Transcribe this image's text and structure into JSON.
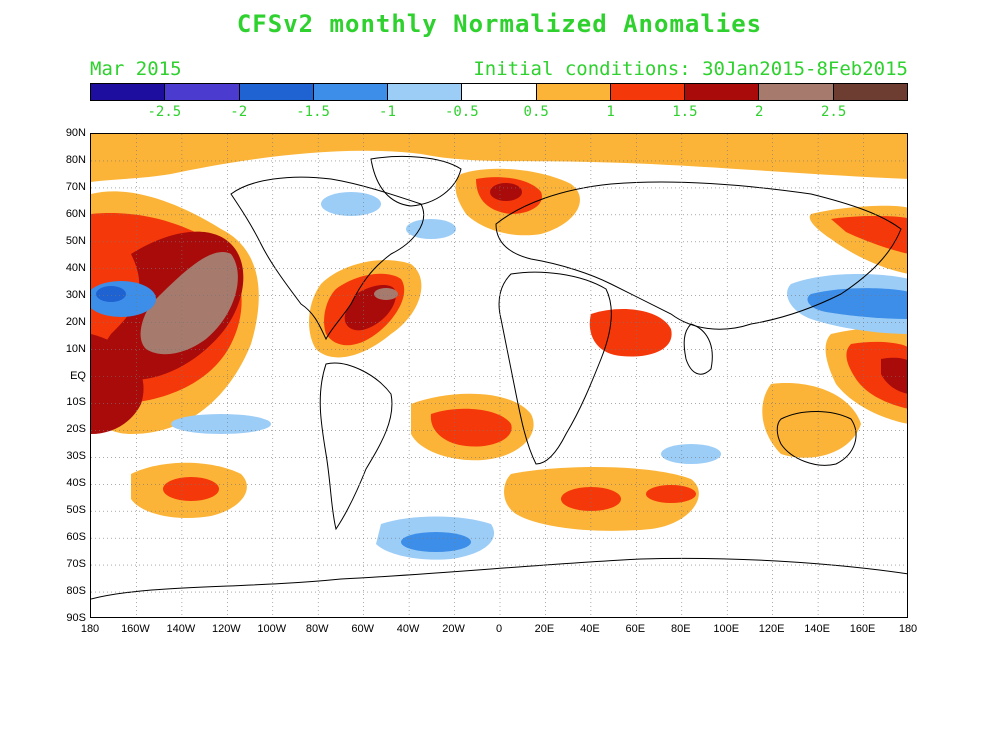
{
  "title": "CFSv2 monthly Normalized Anomalies",
  "month": "Mar 2015",
  "initial_conditions": "Initial conditions: 30Jan2015-8Feb2015",
  "colorbar": {
    "colors": [
      "#1e0ea0",
      "#4b3ccf",
      "#1f62d1",
      "#3d8ee8",
      "#9ccdf7",
      "#ffffff",
      "#fbb437",
      "#f5380a",
      "#a90a0a",
      "#a67a6c",
      "#6d3d32"
    ],
    "labels": [
      "-2.5",
      "-2",
      "-1.5",
      "-1",
      "-0.5",
      "0.5",
      "1",
      "1.5",
      "2",
      "2.5"
    ]
  },
  "lat_labels": [
    "90N",
    "80N",
    "70N",
    "60N",
    "50N",
    "40N",
    "30N",
    "20N",
    "10N",
    "EQ",
    "10S",
    "20S",
    "30S",
    "40S",
    "50S",
    "60S",
    "70S",
    "80S",
    "90S"
  ],
  "lon_labels": [
    "180",
    "160W",
    "140W",
    "120W",
    "100W",
    "80W",
    "60W",
    "40W",
    "20W",
    "0",
    "20E",
    "40E",
    "60E",
    "80E",
    "100E",
    "120E",
    "140E",
    "160E",
    "180"
  ],
  "colors": {
    "text_accent": "#2ed12e",
    "coast": "#000000"
  }
}
